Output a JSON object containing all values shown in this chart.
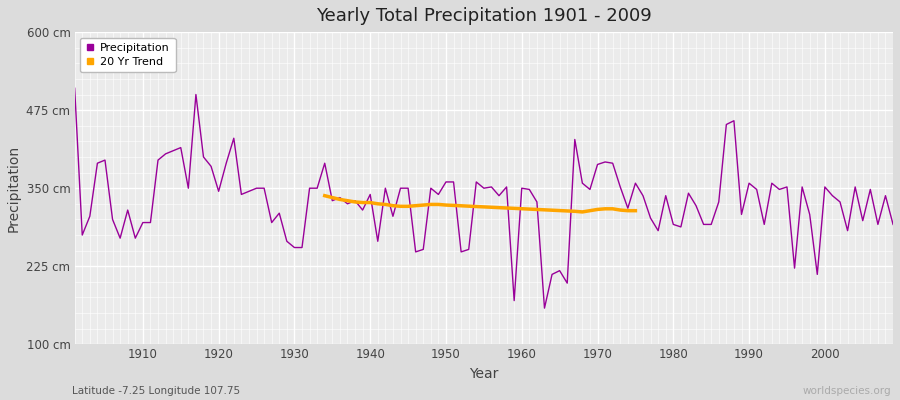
{
  "title": "Yearly Total Precipitation 1901 - 2009",
  "xlabel": "Year",
  "ylabel": "Precipitation",
  "subtitle": "Latitude -7.25 Longitude 107.75",
  "watermark": "worldspecies.org",
  "ylim": [
    100,
    600
  ],
  "yticks": [
    100,
    225,
    350,
    475,
    600
  ],
  "ytick_labels": [
    "100 cm",
    "225 cm",
    "350 cm",
    "475 cm",
    "600 cm"
  ],
  "xlim": [
    1901,
    2009
  ],
  "xticks": [
    1910,
    1920,
    1930,
    1940,
    1950,
    1960,
    1970,
    1980,
    1990,
    2000
  ],
  "line_color": "#990099",
  "trend_color": "#FFA500",
  "bg_color": "#dcdcdc",
  "plot_bg_color": "#ebebeb",
  "years": [
    1901,
    1902,
    1903,
    1904,
    1905,
    1906,
    1907,
    1908,
    1909,
    1910,
    1911,
    1912,
    1913,
    1914,
    1915,
    1916,
    1917,
    1918,
    1919,
    1920,
    1921,
    1922,
    1923,
    1924,
    1925,
    1926,
    1927,
    1928,
    1929,
    1930,
    1931,
    1932,
    1933,
    1934,
    1935,
    1936,
    1937,
    1938,
    1939,
    1940,
    1941,
    1942,
    1943,
    1944,
    1945,
    1946,
    1947,
    1948,
    1949,
    1950,
    1951,
    1952,
    1953,
    1954,
    1955,
    1956,
    1957,
    1958,
    1959,
    1960,
    1961,
    1962,
    1963,
    1964,
    1965,
    1966,
    1967,
    1968,
    1969,
    1970,
    1971,
    1972,
    1973,
    1974,
    1975,
    1976,
    1977,
    1978,
    1979,
    1980,
    1981,
    1982,
    1983,
    1984,
    1985,
    1986,
    1987,
    1988,
    1989,
    1990,
    1991,
    1992,
    1993,
    1994,
    1995,
    1996,
    1997,
    1998,
    1999,
    2000,
    2001,
    2002,
    2003,
    2004,
    2005,
    2006,
    2007,
    2008,
    2009
  ],
  "precip": [
    510,
    275,
    305,
    390,
    395,
    300,
    270,
    315,
    270,
    295,
    295,
    395,
    405,
    410,
    415,
    350,
    500,
    400,
    385,
    345,
    390,
    430,
    340,
    345,
    350,
    350,
    295,
    310,
    265,
    255,
    255,
    350,
    350,
    390,
    330,
    335,
    325,
    330,
    315,
    340,
    265,
    350,
    305,
    350,
    350,
    248,
    252,
    350,
    340,
    360,
    360,
    248,
    252,
    360,
    350,
    352,
    338,
    352,
    170,
    350,
    348,
    328,
    158,
    212,
    218,
    198,
    428,
    358,
    348,
    388,
    392,
    390,
    352,
    318,
    358,
    338,
    302,
    282,
    338,
    292,
    288,
    342,
    322,
    292,
    292,
    328,
    452,
    458,
    308,
    358,
    348,
    292,
    358,
    348,
    352,
    222,
    352,
    308,
    212,
    352,
    338,
    328,
    282,
    352,
    298,
    348,
    292,
    338,
    292
  ],
  "trend_years": [
    1934,
    1935,
    1936,
    1937,
    1938,
    1939,
    1940,
    1941,
    1942,
    1943,
    1944,
    1945,
    1946,
    1947,
    1948,
    1949,
    1950,
    1967,
    1968,
    1969,
    1970,
    1971,
    1972,
    1973,
    1974,
    1975
  ],
  "trend_values": [
    338,
    335,
    332,
    330,
    328,
    327,
    327,
    325,
    324,
    322,
    321,
    321,
    322,
    323,
    324,
    324,
    323,
    313,
    312,
    314,
    316,
    317,
    317,
    315,
    314,
    314
  ]
}
